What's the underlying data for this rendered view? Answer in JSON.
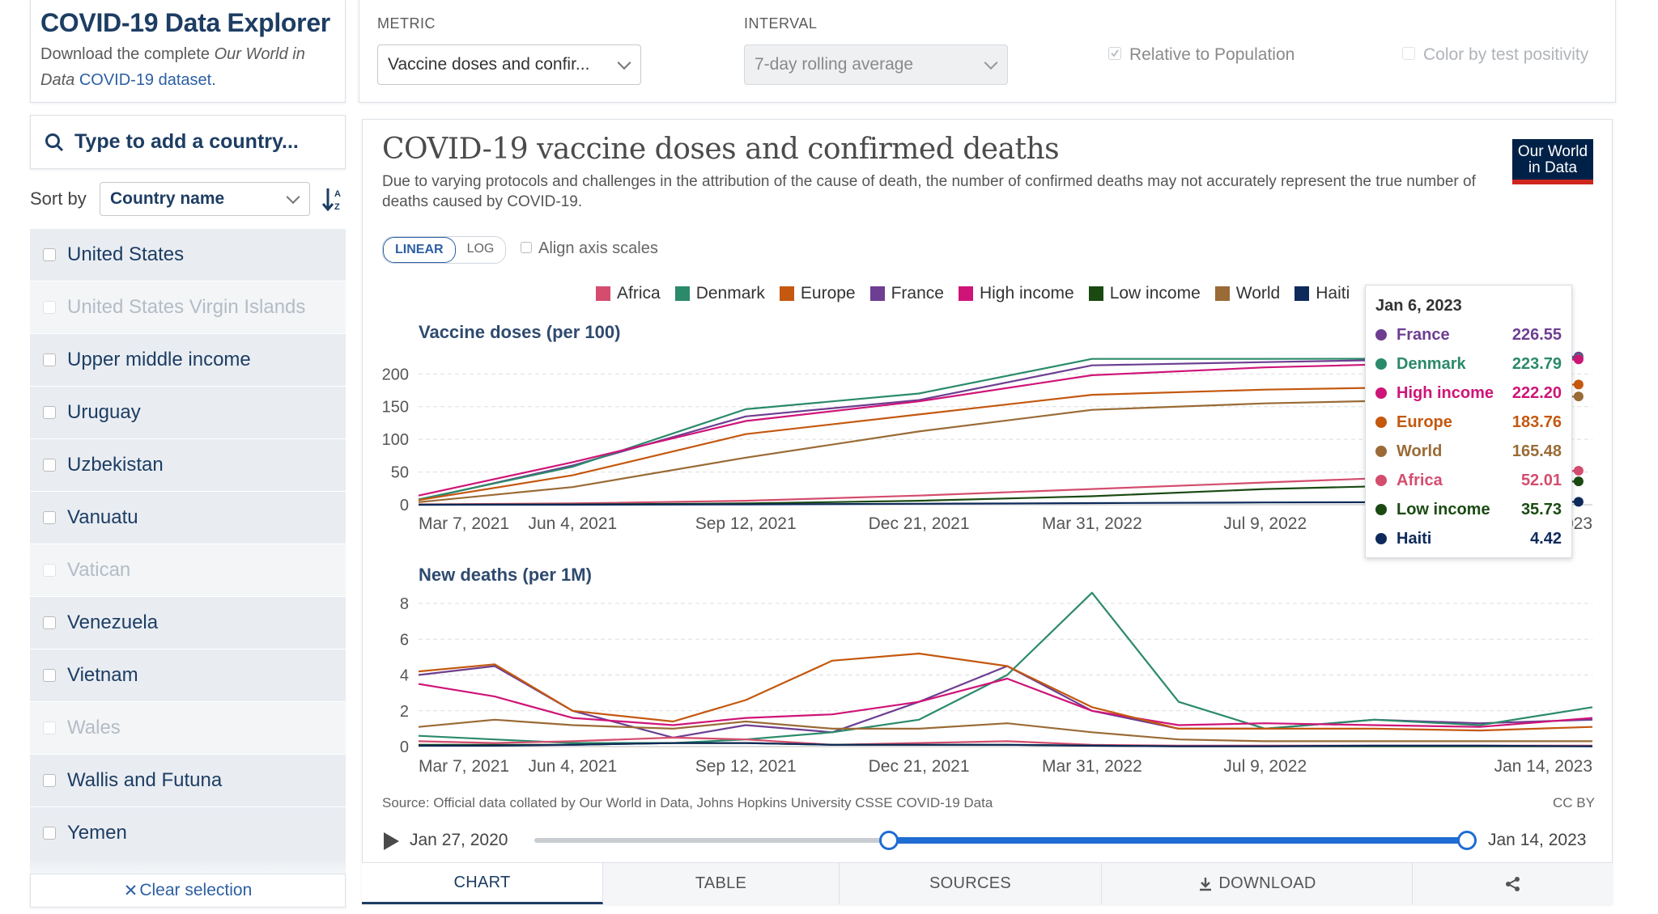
{
  "explorer": {
    "title": "COVID-19 Data Explorer",
    "subtitle_prefix": "Download the complete ",
    "subtitle_italic": "Our World in Data",
    "subtitle_link": "COVID-19 dataset."
  },
  "controls": {
    "metric_label": "METRIC",
    "metric_value": "Vaccine doses and confir...",
    "interval_label": "INTERVAL",
    "interval_value": "7-day rolling average",
    "relative_label": "Relative to Population",
    "color_label": "Color by test positivity"
  },
  "sidebar": {
    "search_placeholder": "Type to add a country...",
    "sort_label": "Sort by",
    "sort_value": "Country name",
    "countries": [
      {
        "name": "United States",
        "state": "sel"
      },
      {
        "name": "United States Virgin Islands",
        "state": "dis"
      },
      {
        "name": "Upper middle income",
        "state": "sel"
      },
      {
        "name": "Uruguay",
        "state": "sel"
      },
      {
        "name": "Uzbekistan",
        "state": "sel"
      },
      {
        "name": "Vanuatu",
        "state": "sel"
      },
      {
        "name": "Vatican",
        "state": "dis"
      },
      {
        "name": "Venezuela",
        "state": "sel"
      },
      {
        "name": "Vietnam",
        "state": "sel"
      },
      {
        "name": "Wales",
        "state": "dis"
      },
      {
        "name": "Wallis and Futuna",
        "state": "sel"
      },
      {
        "name": "Yemen",
        "state": "sel"
      }
    ],
    "clear_label": "Clear selection"
  },
  "chart_header": {
    "title": "COVID-19 vaccine doses and confirmed deaths",
    "subtitle": "Due to varying protocols and challenges in the attribution of the cause of death, the number of confirmed deaths may not accurately represent the true number of deaths caused by COVID-19.",
    "logo_line1": "Our World",
    "logo_line2": "in Data",
    "linear_label": "LINEAR",
    "log_label": "LOG",
    "align_label": "Align axis scales"
  },
  "colors": {
    "Africa": "#d44d6e",
    "Denmark": "#2b8a6a",
    "Europe": "#c4580f",
    "France": "#6d3e91",
    "High income": "#cf1478",
    "Low income": "#1a4a12",
    "World": "#9a6b36",
    "Haiti": "#0e2a5a"
  },
  "legend": [
    "Africa",
    "Denmark",
    "Europe",
    "France",
    "High income",
    "Low income",
    "World",
    "Haiti"
  ],
  "tooltip": {
    "date": "Jan 6, 2023",
    "rows": [
      {
        "name": "France",
        "value": "226.55"
      },
      {
        "name": "Denmark",
        "value": "223.79"
      },
      {
        "name": "High income",
        "value": "222.20"
      },
      {
        "name": "Europe",
        "value": "183.76"
      },
      {
        "name": "World",
        "value": "165.48"
      },
      {
        "name": "Africa",
        "value": "52.01"
      },
      {
        "name": "Low income",
        "value": "35.73"
      },
      {
        "name": "Haiti",
        "value": "4.42"
      }
    ]
  },
  "chart_data": [
    {
      "type": "line",
      "title": "Vaccine doses (per 100)",
      "x_ticks": [
        "Mar 7, 2021",
        "Jun 4, 2021",
        "Sep 12, 2021",
        "Dec 21, 2021",
        "Mar 31, 2022",
        "Jul 9, 2022",
        "Jan 14, 2023"
      ],
      "y_ticks": [
        0,
        50,
        100,
        150,
        200
      ],
      "ylim": [
        0,
        230
      ],
      "x_range": [
        "Mar 7, 2021",
        "Jan 14, 2023"
      ],
      "grid": true,
      "series": [
        {
          "name": "France",
          "x": [
            "Mar 7, 2021",
            "Jun 4, 2021",
            "Sep 12, 2021",
            "Dec 21, 2021",
            "Mar 31, 2022",
            "Jul 9, 2022",
            "Jan 6, 2023"
          ],
          "values": [
            7,
            60,
            135,
            160,
            213,
            218,
            226.55
          ]
        },
        {
          "name": "Denmark",
          "x": [
            "Mar 7, 2021",
            "Jun 4, 2021",
            "Sep 12, 2021",
            "Dec 21, 2021",
            "Mar 31, 2022",
            "Jul 9, 2022",
            "Jan 6, 2023"
          ],
          "values": [
            8,
            58,
            146,
            170,
            223,
            223,
            223.79
          ]
        },
        {
          "name": "High income",
          "x": [
            "Mar 7, 2021",
            "Jun 4, 2021",
            "Sep 12, 2021",
            "Dec 21, 2021",
            "Mar 31, 2022",
            "Jul 9, 2022",
            "Jan 6, 2023"
          ],
          "values": [
            14,
            65,
            128,
            158,
            198,
            210,
            222.2
          ]
        },
        {
          "name": "Europe",
          "x": [
            "Mar 7, 2021",
            "Jun 4, 2021",
            "Sep 12, 2021",
            "Dec 21, 2021",
            "Mar 31, 2022",
            "Jul 9, 2022",
            "Jan 6, 2023"
          ],
          "values": [
            7,
            45,
            108,
            138,
            168,
            176,
            183.76
          ]
        },
        {
          "name": "World",
          "x": [
            "Mar 7, 2021",
            "Jun 4, 2021",
            "Sep 12, 2021",
            "Dec 21, 2021",
            "Mar 31, 2022",
            "Jul 9, 2022",
            "Jan 6, 2023"
          ],
          "values": [
            4,
            27,
            72,
            112,
            145,
            155,
            165.48
          ]
        },
        {
          "name": "Africa",
          "x": [
            "Mar 7, 2021",
            "Jun 4, 2021",
            "Sep 12, 2021",
            "Dec 21, 2021",
            "Mar 31, 2022",
            "Jul 9, 2022",
            "Jan 6, 2023"
          ],
          "values": [
            0.5,
            2,
            6,
            14,
            24,
            34,
            52.01
          ]
        },
        {
          "name": "Low income",
          "x": [
            "Mar 7, 2021",
            "Jun 4, 2021",
            "Sep 12, 2021",
            "Dec 21, 2021",
            "Mar 31, 2022",
            "Jul 9, 2022",
            "Jan 6, 2023"
          ],
          "values": [
            0,
            0.5,
            2,
            6,
            13,
            24,
            35.73
          ]
        },
        {
          "name": "Haiti",
          "x": [
            "Mar 7, 2021",
            "Jun 4, 2021",
            "Sep 12, 2021",
            "Dec 21, 2021",
            "Mar 31, 2022",
            "Jul 9, 2022",
            "Jan 6, 2023"
          ],
          "values": [
            0,
            0,
            0.5,
            1.5,
            2.5,
            3.5,
            4.42
          ]
        }
      ]
    },
    {
      "type": "line",
      "title": "New deaths (per 1M)",
      "x_ticks": [
        "Mar 7, 2021",
        "Jun 4, 2021",
        "Sep 12, 2021",
        "Dec 21, 2021",
        "Mar 31, 2022",
        "Jul 9, 2022",
        "Jan 14, 2023"
      ],
      "y_ticks": [
        0,
        2,
        4,
        6,
        8
      ],
      "ylim": [
        0,
        8.5
      ],
      "x_range": [
        "Mar 7, 2021",
        "Jan 14, 2023"
      ],
      "grid": true,
      "series": [
        {
          "name": "France",
          "x": [
            "Mar 7, 2021",
            "Apr 20, 2021",
            "Jun 4, 2021",
            "Aug 1, 2021",
            "Sep 12, 2021",
            "Nov 1, 2021",
            "Dec 21, 2021",
            "Feb 10, 2022",
            "Mar 31, 2022",
            "May 20, 2022",
            "Jul 9, 2022",
            "Sep 10, 2022",
            "Nov 10, 2022",
            "Jan 14, 2023"
          ],
          "values": [
            4.0,
            4.5,
            2.0,
            0.5,
            1.2,
            0.8,
            2.5,
            4.5,
            2.0,
            1.0,
            1.0,
            1.5,
            1.3,
            1.5
          ]
        },
        {
          "name": "Denmark",
          "x": [
            "Mar 7, 2021",
            "Apr 20, 2021",
            "Jun 4, 2021",
            "Aug 1, 2021",
            "Sep 12, 2021",
            "Nov 1, 2021",
            "Dec 21, 2021",
            "Feb 10, 2022",
            "Mar 31, 2022",
            "May 20, 2022",
            "Jul 9, 2022",
            "Sep 10, 2022",
            "Nov 10, 2022",
            "Jan 14, 2023"
          ],
          "values": [
            0.6,
            0.4,
            0.2,
            0.2,
            0.4,
            0.8,
            1.5,
            4.0,
            8.6,
            2.5,
            1.0,
            1.5,
            1.2,
            2.2
          ]
        },
        {
          "name": "High income",
          "x": [
            "Mar 7, 2021",
            "Apr 20, 2021",
            "Jun 4, 2021",
            "Aug 1, 2021",
            "Sep 12, 2021",
            "Nov 1, 2021",
            "Dec 21, 2021",
            "Feb 10, 2022",
            "Mar 31, 2022",
            "May 20, 2022",
            "Jul 9, 2022",
            "Sep 10, 2022",
            "Nov 10, 2022",
            "Jan 14, 2023"
          ],
          "values": [
            3.5,
            2.8,
            1.6,
            1.2,
            1.6,
            1.8,
            2.5,
            3.8,
            2.0,
            1.2,
            1.3,
            1.2,
            1.1,
            1.6
          ]
        },
        {
          "name": "Europe",
          "x": [
            "Mar 7, 2021",
            "Apr 20, 2021",
            "Jun 4, 2021",
            "Aug 1, 2021",
            "Sep 12, 2021",
            "Nov 1, 2021",
            "Dec 21, 2021",
            "Feb 10, 2022",
            "Mar 31, 2022",
            "May 20, 2022",
            "Jul 9, 2022",
            "Sep 10, 2022",
            "Nov 10, 2022",
            "Jan 14, 2023"
          ],
          "values": [
            4.2,
            4.6,
            2.0,
            1.4,
            2.6,
            4.8,
            5.2,
            4.5,
            2.2,
            1.0,
            1.0,
            1.0,
            0.9,
            1.1
          ]
        },
        {
          "name": "World",
          "x": [
            "Mar 7, 2021",
            "Apr 20, 2021",
            "Jun 4, 2021",
            "Aug 1, 2021",
            "Sep 12, 2021",
            "Nov 1, 2021",
            "Dec 21, 2021",
            "Feb 10, 2022",
            "Mar 31, 2022",
            "May 20, 2022",
            "Jul 9, 2022",
            "Sep 10, 2022",
            "Nov 10, 2022",
            "Jan 14, 2023"
          ],
          "values": [
            1.1,
            1.5,
            1.2,
            1.0,
            1.4,
            1.0,
            1.0,
            1.3,
            0.8,
            0.4,
            0.3,
            0.3,
            0.3,
            0.3
          ]
        },
        {
          "name": "Africa",
          "x": [
            "Mar 7, 2021",
            "Apr 20, 2021",
            "Jun 4, 2021",
            "Aug 1, 2021",
            "Sep 12, 2021",
            "Nov 1, 2021",
            "Dec 21, 2021",
            "Feb 10, 2022",
            "Mar 31, 2022",
            "May 20, 2022",
            "Jul 9, 2022",
            "Sep 10, 2022",
            "Nov 10, 2022",
            "Jan 14, 2023"
          ],
          "values": [
            0.3,
            0.2,
            0.3,
            0.5,
            0.4,
            0.1,
            0.2,
            0.3,
            0.1,
            0.05,
            0.05,
            0.05,
            0.05,
            0.05
          ]
        },
        {
          "name": "Low income",
          "x": [
            "Mar 7, 2021",
            "Apr 20, 2021",
            "Jun 4, 2021",
            "Aug 1, 2021",
            "Sep 12, 2021",
            "Nov 1, 2021",
            "Dec 21, 2021",
            "Feb 10, 2022",
            "Mar 31, 2022",
            "May 20, 2022",
            "Jul 9, 2022",
            "Sep 10, 2022",
            "Nov 10, 2022",
            "Jan 14, 2023"
          ],
          "values": [
            0.1,
            0.1,
            0.1,
            0.2,
            0.2,
            0.1,
            0.1,
            0.1,
            0.05,
            0.02,
            0.02,
            0.02,
            0.02,
            0.02
          ]
        },
        {
          "name": "Haiti",
          "x": [
            "Mar 7, 2021",
            "Apr 20, 2021",
            "Jun 4, 2021",
            "Aug 1, 2021",
            "Sep 12, 2021",
            "Nov 1, 2021",
            "Dec 21, 2021",
            "Feb 10, 2022",
            "Mar 31, 2022",
            "May 20, 2022",
            "Jul 9, 2022",
            "Sep 10, 2022",
            "Nov 10, 2022",
            "Jan 14, 2023"
          ],
          "values": [
            0.05,
            0.05,
            0.1,
            0.2,
            0.2,
            0.1,
            0.1,
            0.1,
            0.05,
            0.02,
            0.02,
            0.05,
            0.05,
            0.02
          ]
        }
      ]
    }
  ],
  "source_text": "Source: Official data collated by Our World in Data, Johns Hopkins University CSSE COVID-19 Data",
  "license_text": "CC BY",
  "timeline": {
    "start_label": "Jan 27, 2020",
    "end_label": "Jan 14, 2023",
    "range_start_fraction": 0.38,
    "range_end_fraction": 1.0
  },
  "tabs": [
    "CHART",
    "TABLE",
    "SOURCES",
    "DOWNLOAD"
  ]
}
